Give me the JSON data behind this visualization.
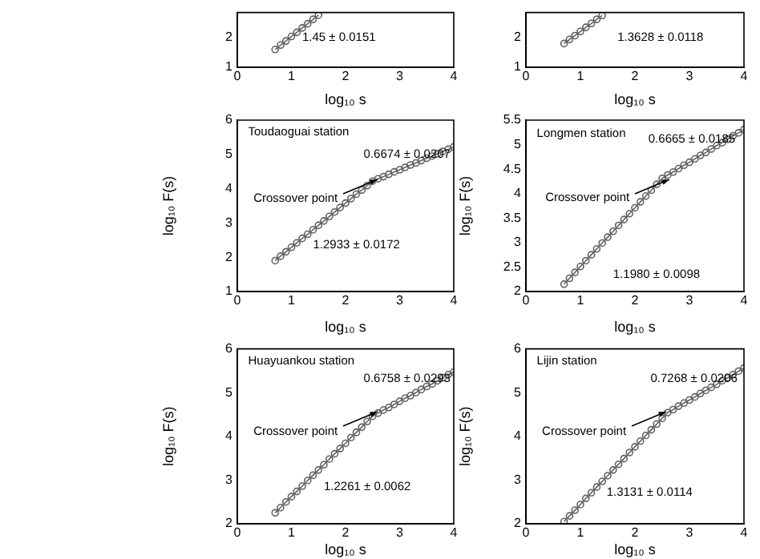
{
  "chart_data": [
    {
      "type": "line",
      "xlabel": "log₁₀ s",
      "marker": "circle",
      "xlim": [
        0,
        4
      ],
      "xticks": [
        0,
        1,
        2,
        3,
        4
      ],
      "ylim": [
        1,
        2.85
      ],
      "yticks": [
        1,
        2
      ],
      "x": [
        0.7,
        0.8,
        0.9,
        1.0,
        1.1,
        1.2,
        1.3,
        1.4,
        1.5
      ],
      "series": [
        {
          "color": "#606060",
          "values": [
            1.6,
            1.75,
            1.89,
            2.04,
            2.18,
            2.33,
            2.47,
            2.62,
            2.76
          ]
        }
      ],
      "annotations": [
        "1.45 ± 0.0151"
      ]
    },
    {
      "type": "line",
      "xlabel": "log₁₀ s",
      "marker": "circle",
      "xlim": [
        0,
        4
      ],
      "xticks": [
        0,
        1,
        2,
        3,
        4
      ],
      "ylim": [
        1,
        2.85
      ],
      "yticks": [
        1,
        2
      ],
      "x": [
        0.7,
        0.8,
        0.9,
        1.0,
        1.1,
        1.2,
        1.3,
        1.4
      ],
      "series": [
        {
          "color": "#606060",
          "values": [
            1.8,
            1.94,
            2.07,
            2.21,
            2.35,
            2.48,
            2.62,
            2.75
          ]
        }
      ],
      "annotations": [
        "1.3628 ± 0.0118"
      ]
    },
    {
      "type": "line",
      "xlabel": "log₁₀ s",
      "ylabel": "log₁₀ F(s)",
      "marker": "circle",
      "xlim": [
        0,
        4
      ],
      "xticks": [
        0,
        1,
        2,
        3,
        4
      ],
      "ylim": [
        1,
        6
      ],
      "yticks": [
        1,
        2,
        3,
        4,
        5,
        6
      ],
      "x": [
        0.7,
        0.8,
        0.9,
        1.0,
        1.1,
        1.2,
        1.3,
        1.4,
        1.5,
        1.6,
        1.7,
        1.8,
        1.9,
        2.0,
        2.1,
        2.2,
        2.3,
        2.4,
        2.5,
        2.6,
        2.7,
        2.8,
        2.9,
        3.0,
        3.1,
        3.2,
        3.3,
        3.4,
        3.5,
        3.6,
        3.7,
        3.8,
        3.9,
        4.0
      ],
      "series": [
        {
          "color": "#606060",
          "values": [
            1.9,
            2.03,
            2.16,
            2.29,
            2.42,
            2.55,
            2.67,
            2.8,
            2.93,
            3.06,
            3.19,
            3.32,
            3.45,
            3.58,
            3.71,
            3.84,
            3.96,
            4.09,
            4.22,
            4.29,
            4.35,
            4.42,
            4.49,
            4.55,
            4.62,
            4.69,
            4.75,
            4.82,
            4.89,
            4.95,
            5.02,
            5.09,
            5.15,
            5.22
          ]
        }
      ],
      "annotations": [
        "Toudaoguai station",
        {
          "text": "Crossover point",
          "x": 2.58,
          "y": 4.27
        },
        "0.6674 ± 0.0207",
        "1.2933 ± 0.0172"
      ]
    },
    {
      "type": "line",
      "xlabel": "log₁₀ s",
      "ylabel": "log₁₀ F(s)",
      "marker": "circle",
      "xlim": [
        0,
        4
      ],
      "xticks": [
        0,
        1,
        2,
        3,
        4
      ],
      "ylim": [
        2,
        5.5
      ],
      "yticks": [
        2,
        2.5,
        3,
        3.5,
        4,
        4.5,
        5,
        5.5
      ],
      "x": [
        0.7,
        0.8,
        0.9,
        1.0,
        1.1,
        1.2,
        1.3,
        1.4,
        1.5,
        1.6,
        1.7,
        1.8,
        1.9,
        2.0,
        2.1,
        2.2,
        2.3,
        2.4,
        2.5,
        2.6,
        2.7,
        2.8,
        2.9,
        3.0,
        3.1,
        3.2,
        3.3,
        3.4,
        3.5,
        3.6,
        3.7,
        3.8,
        3.9,
        4.0
      ],
      "series": [
        {
          "color": "#606060",
          "values": [
            2.15,
            2.27,
            2.39,
            2.51,
            2.63,
            2.75,
            2.87,
            2.99,
            3.11,
            3.23,
            3.35,
            3.47,
            3.59,
            3.71,
            3.83,
            3.95,
            4.07,
            4.19,
            4.31,
            4.38,
            4.44,
            4.51,
            4.58,
            4.64,
            4.71,
            4.78,
            4.84,
            4.91,
            4.98,
            5.04,
            5.11,
            5.18,
            5.24,
            5.31
          ]
        }
      ],
      "annotations": [
        "Longmen station",
        {
          "text": "Crossover point",
          "x": 2.62,
          "y": 4.3
        },
        "0.6665 ± 0.0185",
        "1.1980 ± 0.0098"
      ]
    },
    {
      "type": "line",
      "xlabel": "log₁₀ s",
      "ylabel": "log₁₀ F(s)",
      "marker": "circle",
      "xlim": [
        0,
        4
      ],
      "xticks": [
        0,
        1,
        2,
        3,
        4
      ],
      "ylim": [
        2,
        6
      ],
      "yticks": [
        2,
        3,
        4,
        5,
        6
      ],
      "x": [
        0.7,
        0.8,
        0.9,
        1.0,
        1.1,
        1.2,
        1.3,
        1.4,
        1.5,
        1.6,
        1.7,
        1.8,
        1.9,
        2.0,
        2.1,
        2.2,
        2.3,
        2.4,
        2.5,
        2.6,
        2.7,
        2.8,
        2.9,
        3.0,
        3.1,
        3.2,
        3.3,
        3.4,
        3.5,
        3.6,
        3.7,
        3.8,
        3.9,
        4.0
      ],
      "series": [
        {
          "color": "#606060",
          "values": [
            2.25,
            2.37,
            2.5,
            2.62,
            2.74,
            2.86,
            2.99,
            3.11,
            3.23,
            3.35,
            3.48,
            3.6,
            3.72,
            3.84,
            3.97,
            4.09,
            4.21,
            4.34,
            4.46,
            4.53,
            4.6,
            4.66,
            4.73,
            4.8,
            4.87,
            4.93,
            5.0,
            5.07,
            5.14,
            5.2,
            5.27,
            5.34,
            5.41,
            5.47
          ]
        }
      ],
      "annotations": [
        "Huayuankou station",
        {
          "text": "Crossover point",
          "x": 2.58,
          "y": 4.55
        },
        "0.6758 ± 0.0293",
        "1.2261 ± 0.0062"
      ]
    },
    {
      "type": "line",
      "xlabel": "log₁₀ s",
      "ylabel": "log₁₀ F(s)",
      "marker": "circle",
      "xlim": [
        0,
        4
      ],
      "xticks": [
        0,
        1,
        2,
        3,
        4
      ],
      "ylim": [
        2,
        6
      ],
      "yticks": [
        2,
        3,
        4,
        5,
        6
      ],
      "x": [
        0.7,
        0.8,
        0.9,
        1.0,
        1.1,
        1.2,
        1.3,
        1.4,
        1.5,
        1.6,
        1.7,
        1.8,
        1.9,
        2.0,
        2.1,
        2.2,
        2.3,
        2.4,
        2.5,
        2.6,
        2.7,
        2.8,
        2.9,
        3.0,
        3.1,
        3.2,
        3.3,
        3.4,
        3.5,
        3.6,
        3.7,
        3.8,
        3.9,
        4.0
      ],
      "series": [
        {
          "color": "#606060",
          "values": [
            2.05,
            2.18,
            2.31,
            2.44,
            2.58,
            2.71,
            2.84,
            2.97,
            3.1,
            3.23,
            3.36,
            3.49,
            3.63,
            3.76,
            3.89,
            4.02,
            4.15,
            4.28,
            4.41,
            4.54,
            4.61,
            4.69,
            4.76,
            4.83,
            4.9,
            4.98,
            5.05,
            5.12,
            5.19,
            5.27,
            5.34,
            5.41,
            5.49,
            5.56
          ]
        }
      ],
      "annotations": [
        "Lijin station",
        {
          "text": "Crossover point",
          "x": 2.56,
          "y": 4.55
        },
        "0.7268 ± 0.0206",
        "1.3131 ± 0.0114"
      ]
    }
  ]
}
